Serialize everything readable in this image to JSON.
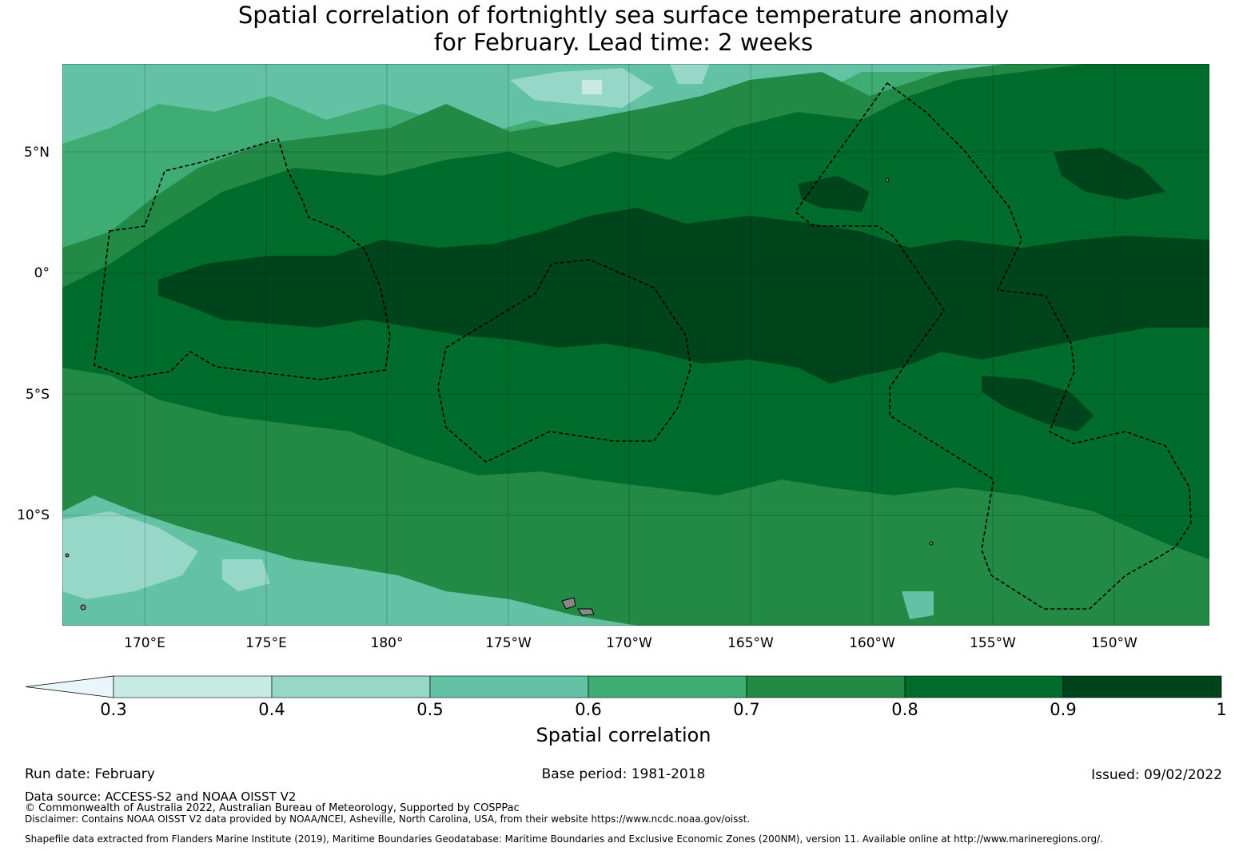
{
  "title": {
    "line1": "Spatial correlation of fortnightly sea surface temperature anomaly",
    "line2": "for February. Lead time: 2 weeks"
  },
  "map": {
    "lat_labels": [
      "5°N",
      "0°",
      "5°S",
      "10°S"
    ],
    "lon_labels": [
      "170°E",
      "175°E",
      "180°",
      "175°W",
      "170°W",
      "165°W",
      "160°W",
      "155°W",
      "150°W"
    ]
  },
  "colorbar": {
    "title": "Spatial correlation",
    "ticks": [
      "0.3",
      "0.4",
      "0.5",
      "0.6",
      "0.7",
      "0.8",
      "0.9",
      "1"
    ],
    "colors": [
      "#c7ebe3",
      "#97d7c8",
      "#62c2a3",
      "#3fac74",
      "#228a45",
      "#006c2c",
      "#00441b"
    ],
    "under_color": "#e8f5fa"
  },
  "footer": {
    "run_date": "Run date: February",
    "base_period": "Base period: 1981-2018",
    "issued": "Issued: 09/02/2022",
    "data_source": "Data source: ACCESS-S2 and NOAA OISST V2",
    "copyright": "© Commonwealth of Australia 2022, Australian Bureau of Meteorology, Supported by COSPPac",
    "disclaimer": "Disclaimer: Contains NOAA OISST V2 data provided by NOAA/NCEI, Asheville, North Carolina, USA, from their website https://www.ncdc.noaa.gov/oisst.",
    "shapefile": "Shapefile data extracted from Flanders Marine Institute (2019), Maritime Boundaries Geodatabase: Maritime Boundaries and Exclusive Economic Zones (200NM), version 11. Available online at http://www.marineregions.org/."
  }
}
